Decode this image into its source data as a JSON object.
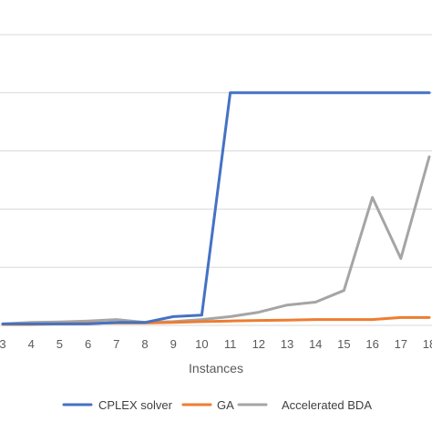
{
  "chart_data": {
    "type": "line",
    "x": [
      3,
      4,
      5,
      6,
      7,
      8,
      9,
      10,
      11,
      12,
      13,
      14,
      15,
      16,
      17,
      18
    ],
    "x_tick_labels": [
      "3",
      "4",
      "5",
      "6",
      "7",
      "8",
      "9",
      "10",
      "11",
      "12",
      "13",
      "14",
      "15",
      "16",
      "17",
      "18"
    ],
    "xlabel": "Instances",
    "ylabel": "",
    "title": "",
    "ylim": [
      0,
      100
    ],
    "grid": true,
    "y_gridlines": [
      20,
      40,
      60,
      80,
      100
    ],
    "legend_position": "bottom",
    "series": [
      {
        "name": "CPLEX solver",
        "color": "#4472C4",
        "values": [
          0.5,
          0.5,
          0.5,
          0.5,
          1,
          1,
          3,
          3.5,
          80,
          80,
          80,
          80,
          80,
          80,
          80,
          80
        ]
      },
      {
        "name": "GA",
        "color": "#ED7D31",
        "values": [
          0.3,
          0.3,
          0.5,
          0.7,
          0.8,
          0.8,
          1,
          1.3,
          1.5,
          1.7,
          1.8,
          2,
          2,
          2,
          2.7,
          2.7
        ]
      },
      {
        "name": "Accelerated BDA",
        "color": "#A5A5A5",
        "values": [
          0.5,
          1,
          1.2,
          1.5,
          2,
          1,
          1.3,
          2,
          3,
          4.5,
          7,
          8,
          12,
          44,
          23,
          58
        ]
      }
    ]
  }
}
